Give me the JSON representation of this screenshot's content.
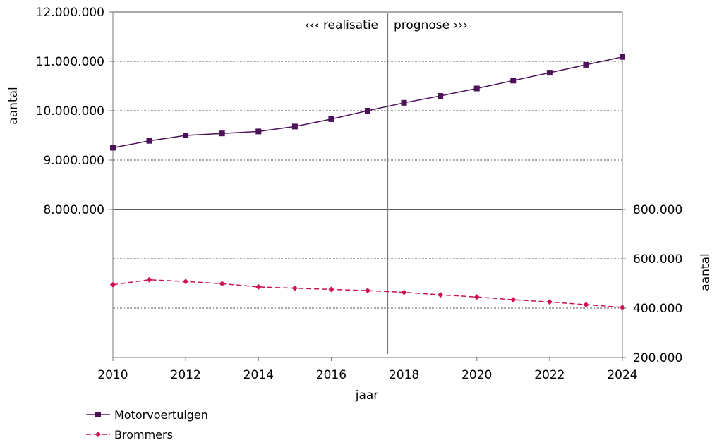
{
  "chart_data": [
    {
      "type": "line",
      "x": [
        2010,
        2011,
        2012,
        2013,
        2014,
        2015,
        2016,
        2017,
        2018,
        2019,
        2020,
        2021,
        2022,
        2023,
        2024
      ],
      "series": [
        {
          "name": "Motorvoertuigen",
          "axis": "left",
          "color": "#4b1257",
          "marker": "square",
          "line_style": "solid",
          "values": [
            9250000,
            9390000,
            9500000,
            9540000,
            9580000,
            9680000,
            9830000,
            10000000,
            10160000,
            10300000,
            10450000,
            10610000,
            10770000,
            10930000,
            11090000
          ]
        },
        {
          "name": "Brommers",
          "axis": "right",
          "color": "#d0104c",
          "marker": "diamond",
          "line_style": "dashed",
          "values": [
            495000,
            515000,
            508000,
            499000,
            486000,
            481000,
            476000,
            471000,
            464000,
            454000,
            445000,
            434000,
            425000,
            414000,
            403000
          ]
        }
      ],
      "x_tick_labels": [
        "2010",
        "2012",
        "2014",
        "2016",
        "2018",
        "2020",
        "2022",
        "2024"
      ],
      "left_axis": {
        "label": "aantal",
        "tick_labels": [
          "12.000.000",
          "11.000.000",
          "10.000.000",
          "9.000.000",
          "8.000.000"
        ],
        "ylim": [
          8000000,
          12000000
        ]
      },
      "right_axis": {
        "label": "aantal",
        "tick_labels": [
          "800.000",
          "600.000",
          "400.000",
          "200.000"
        ],
        "ylim": [
          200000,
          800000
        ]
      },
      "xlabel": "jaar",
      "divider_x": 2017.55,
      "annotation_left": "‹‹‹ realisatie",
      "annotation_right": "prognose ›››",
      "grid": true,
      "legend_position": "bottom-left"
    }
  ]
}
